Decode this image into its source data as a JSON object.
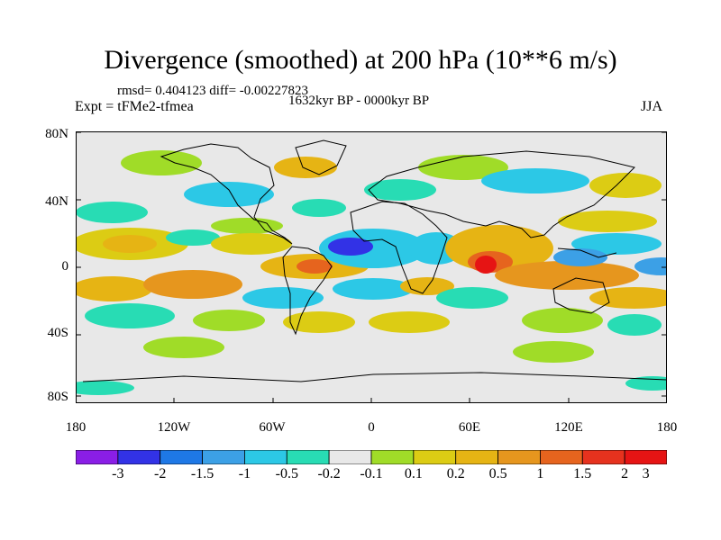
{
  "title": "Divergence (smoothed) at 200 hPa (10**6 m/s)",
  "stats": "rmsd= 0.404123 diff= -0.00227823",
  "experiment": "Expt = tFMe2-tfmea",
  "period": "1632kyr BP - 0000kyr BP",
  "season": "JJA",
  "axes": {
    "x_ticks": [
      "180",
      "120W",
      "60W",
      "0",
      "60E",
      "120E",
      "180"
    ],
    "y_ticks": [
      "80N",
      "40N",
      "0",
      "40S",
      "80S"
    ]
  },
  "colorbar": {
    "labels": [
      "-3",
      "-2",
      "-1.5",
      "-1",
      "-0.5",
      "-0.2",
      "-0.1",
      "0.1",
      "0.2",
      "0.5",
      "1",
      "1.5",
      "2",
      "3"
    ],
    "colors": [
      "#8a1ee6",
      "#3232e6",
      "#1e78e6",
      "#3ca0e6",
      "#2cc8e6",
      "#28dcb4",
      "#e8e8e8",
      "#a0dc28",
      "#dccc14",
      "#e6b414",
      "#e6961e",
      "#e6641e",
      "#e6321e",
      "#e61414"
    ]
  },
  "map_colors": {
    "neutral": "#e8e8e8",
    "coast": "#000000"
  }
}
